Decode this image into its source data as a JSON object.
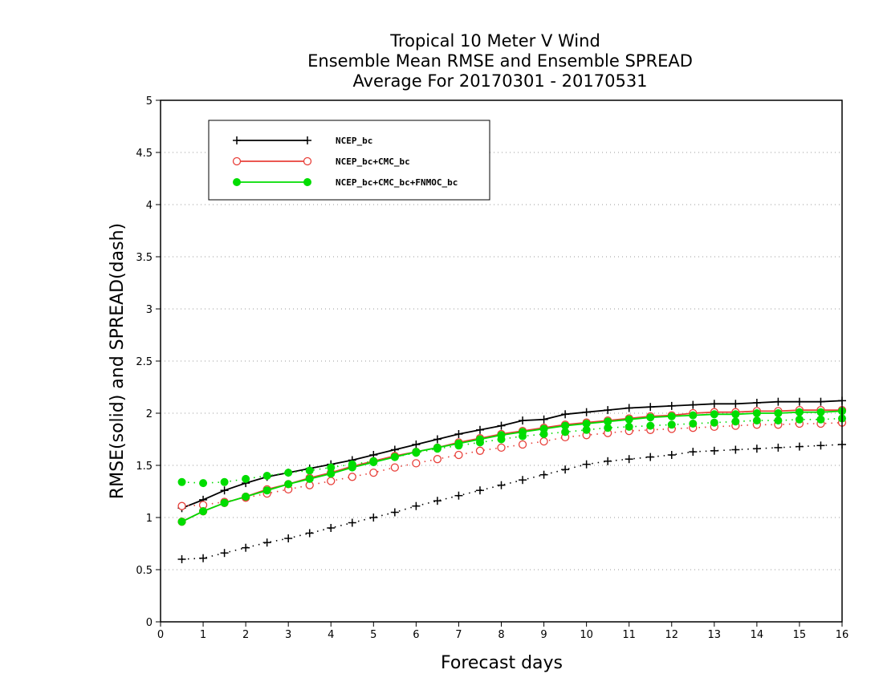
{
  "chart_data": {
    "type": "line",
    "title": [
      "Tropical 10 Meter V Wind",
      "Ensemble Mean RMSE and Ensemble SPREAD",
      "Average For 20170301 - 20170531"
    ],
    "xlabel": "Forecast days",
    "ylabel": "RMSE(solid) and SPREAD(dash)",
    "xlim": [
      0,
      16
    ],
    "ylim": [
      0,
      5
    ],
    "xticks": [
      "0",
      "1",
      "2",
      "3",
      "4",
      "5",
      "6",
      "7",
      "8",
      "9",
      "10",
      "11",
      "12",
      "13",
      "14",
      "15",
      "16"
    ],
    "yticks": [
      "0",
      "0.5",
      "1",
      "1.5",
      "2",
      "2.5",
      "3",
      "3.5",
      "4",
      "4.5",
      "5"
    ],
    "grid": "horizontal dotted",
    "legend_position": "top-left",
    "x": [
      0.5,
      1,
      1.5,
      2,
      2.5,
      3,
      3.5,
      4,
      4.5,
      5,
      5.5,
      6,
      6.5,
      7,
      7.5,
      8,
      8.5,
      9,
      9.5,
      10,
      10.5,
      11,
      11.5,
      12,
      12.5,
      13,
      13.5,
      14,
      14.5,
      15,
      15.5,
      16
    ],
    "series": [
      {
        "name": "NCEP_bc",
        "color": "#000000",
        "marker": "plus",
        "rmse": [
          1.09,
          1.17,
          1.26,
          1.33,
          1.39,
          1.43,
          1.47,
          1.51,
          1.55,
          1.6,
          1.65,
          1.7,
          1.75,
          1.8,
          1.84,
          1.88,
          1.93,
          1.94,
          1.99,
          2.01,
          2.03,
          2.05,
          2.06,
          2.07,
          2.08,
          2.09,
          2.09,
          2.1,
          2.11,
          2.11,
          2.11,
          2.12
        ],
        "spread": [
          0.6,
          0.61,
          0.66,
          0.71,
          0.76,
          0.8,
          0.85,
          0.9,
          0.95,
          1.0,
          1.05,
          1.11,
          1.16,
          1.21,
          1.26,
          1.31,
          1.36,
          1.41,
          1.46,
          1.51,
          1.54,
          1.56,
          1.58,
          1.6,
          1.63,
          1.64,
          1.65,
          1.66,
          1.67,
          1.68,
          1.69,
          1.7
        ]
      },
      {
        "name": "NCEP_bc+CMC_bc",
        "color": "#e8403a",
        "marker": "open-circle",
        "rmse": [
          0.96,
          1.06,
          1.14,
          1.2,
          1.27,
          1.32,
          1.38,
          1.43,
          1.49,
          1.54,
          1.59,
          1.63,
          1.67,
          1.72,
          1.76,
          1.8,
          1.83,
          1.86,
          1.89,
          1.91,
          1.93,
          1.95,
          1.97,
          1.98,
          2.0,
          2.01,
          2.01,
          2.02,
          2.02,
          2.03,
          2.03,
          2.03
        ],
        "spread": [
          1.11,
          1.12,
          1.15,
          1.19,
          1.23,
          1.27,
          1.31,
          1.35,
          1.39,
          1.43,
          1.48,
          1.52,
          1.56,
          1.6,
          1.64,
          1.67,
          1.7,
          1.73,
          1.77,
          1.79,
          1.81,
          1.83,
          1.84,
          1.85,
          1.86,
          1.87,
          1.88,
          1.89,
          1.89,
          1.9,
          1.9,
          1.91
        ]
      },
      {
        "name": "NCEP_bc+CMC_bc+FNMOC_bc",
        "color": "#00dd00",
        "marker": "filled-circle",
        "rmse": [
          0.96,
          1.06,
          1.14,
          1.2,
          1.26,
          1.32,
          1.37,
          1.42,
          1.48,
          1.53,
          1.58,
          1.63,
          1.67,
          1.71,
          1.75,
          1.79,
          1.82,
          1.85,
          1.88,
          1.9,
          1.92,
          1.94,
          1.96,
          1.97,
          1.98,
          1.99,
          1.99,
          2.0,
          2.0,
          2.01,
          2.01,
          2.02
        ],
        "spread": [
          1.34,
          1.33,
          1.34,
          1.37,
          1.4,
          1.43,
          1.45,
          1.48,
          1.51,
          1.54,
          1.58,
          1.62,
          1.66,
          1.69,
          1.72,
          1.75,
          1.78,
          1.8,
          1.82,
          1.84,
          1.86,
          1.87,
          1.88,
          1.89,
          1.9,
          1.91,
          1.92,
          1.93,
          1.93,
          1.94,
          1.94,
          1.95
        ]
      }
    ]
  }
}
